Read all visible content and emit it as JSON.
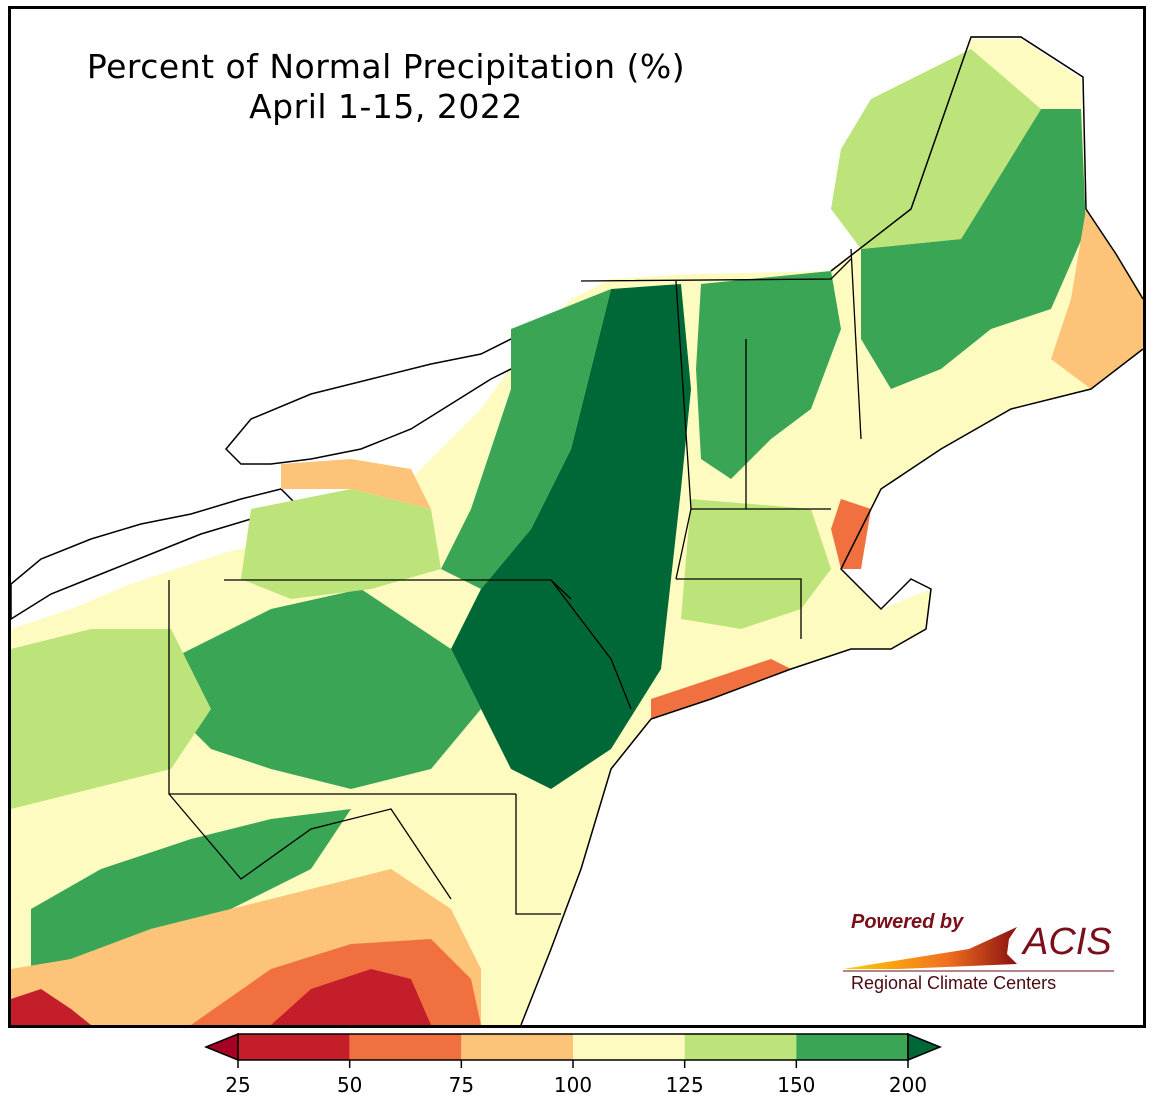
{
  "title": {
    "line1": "Percent of Normal Precipitation (%)",
    "line2": "April 1-15, 2022"
  },
  "logo": {
    "powered_by": "Powered by",
    "acis": "ACIS",
    "subtitle": "Regional Climate Centers"
  },
  "legend": {
    "ticks": [
      "25",
      "50",
      "75",
      "100",
      "125",
      "150",
      "200"
    ],
    "bins": [
      {
        "range": "25-50",
        "color": "#c41e2a"
      },
      {
        "range": "50-75",
        "color": "#f07040"
      },
      {
        "range": "75-100",
        "color": "#fdc378"
      },
      {
        "range": "100-125",
        "color": "#fefbc0"
      },
      {
        "range": "125-150",
        "color": "#bde47a"
      },
      {
        "range": "150-200",
        "color": "#3aa655"
      }
    ],
    "under_color": "#a50026",
    "over_color": "#006837"
  },
  "colors": {
    "water": "#ffffff",
    "boundary": "#000000"
  }
}
